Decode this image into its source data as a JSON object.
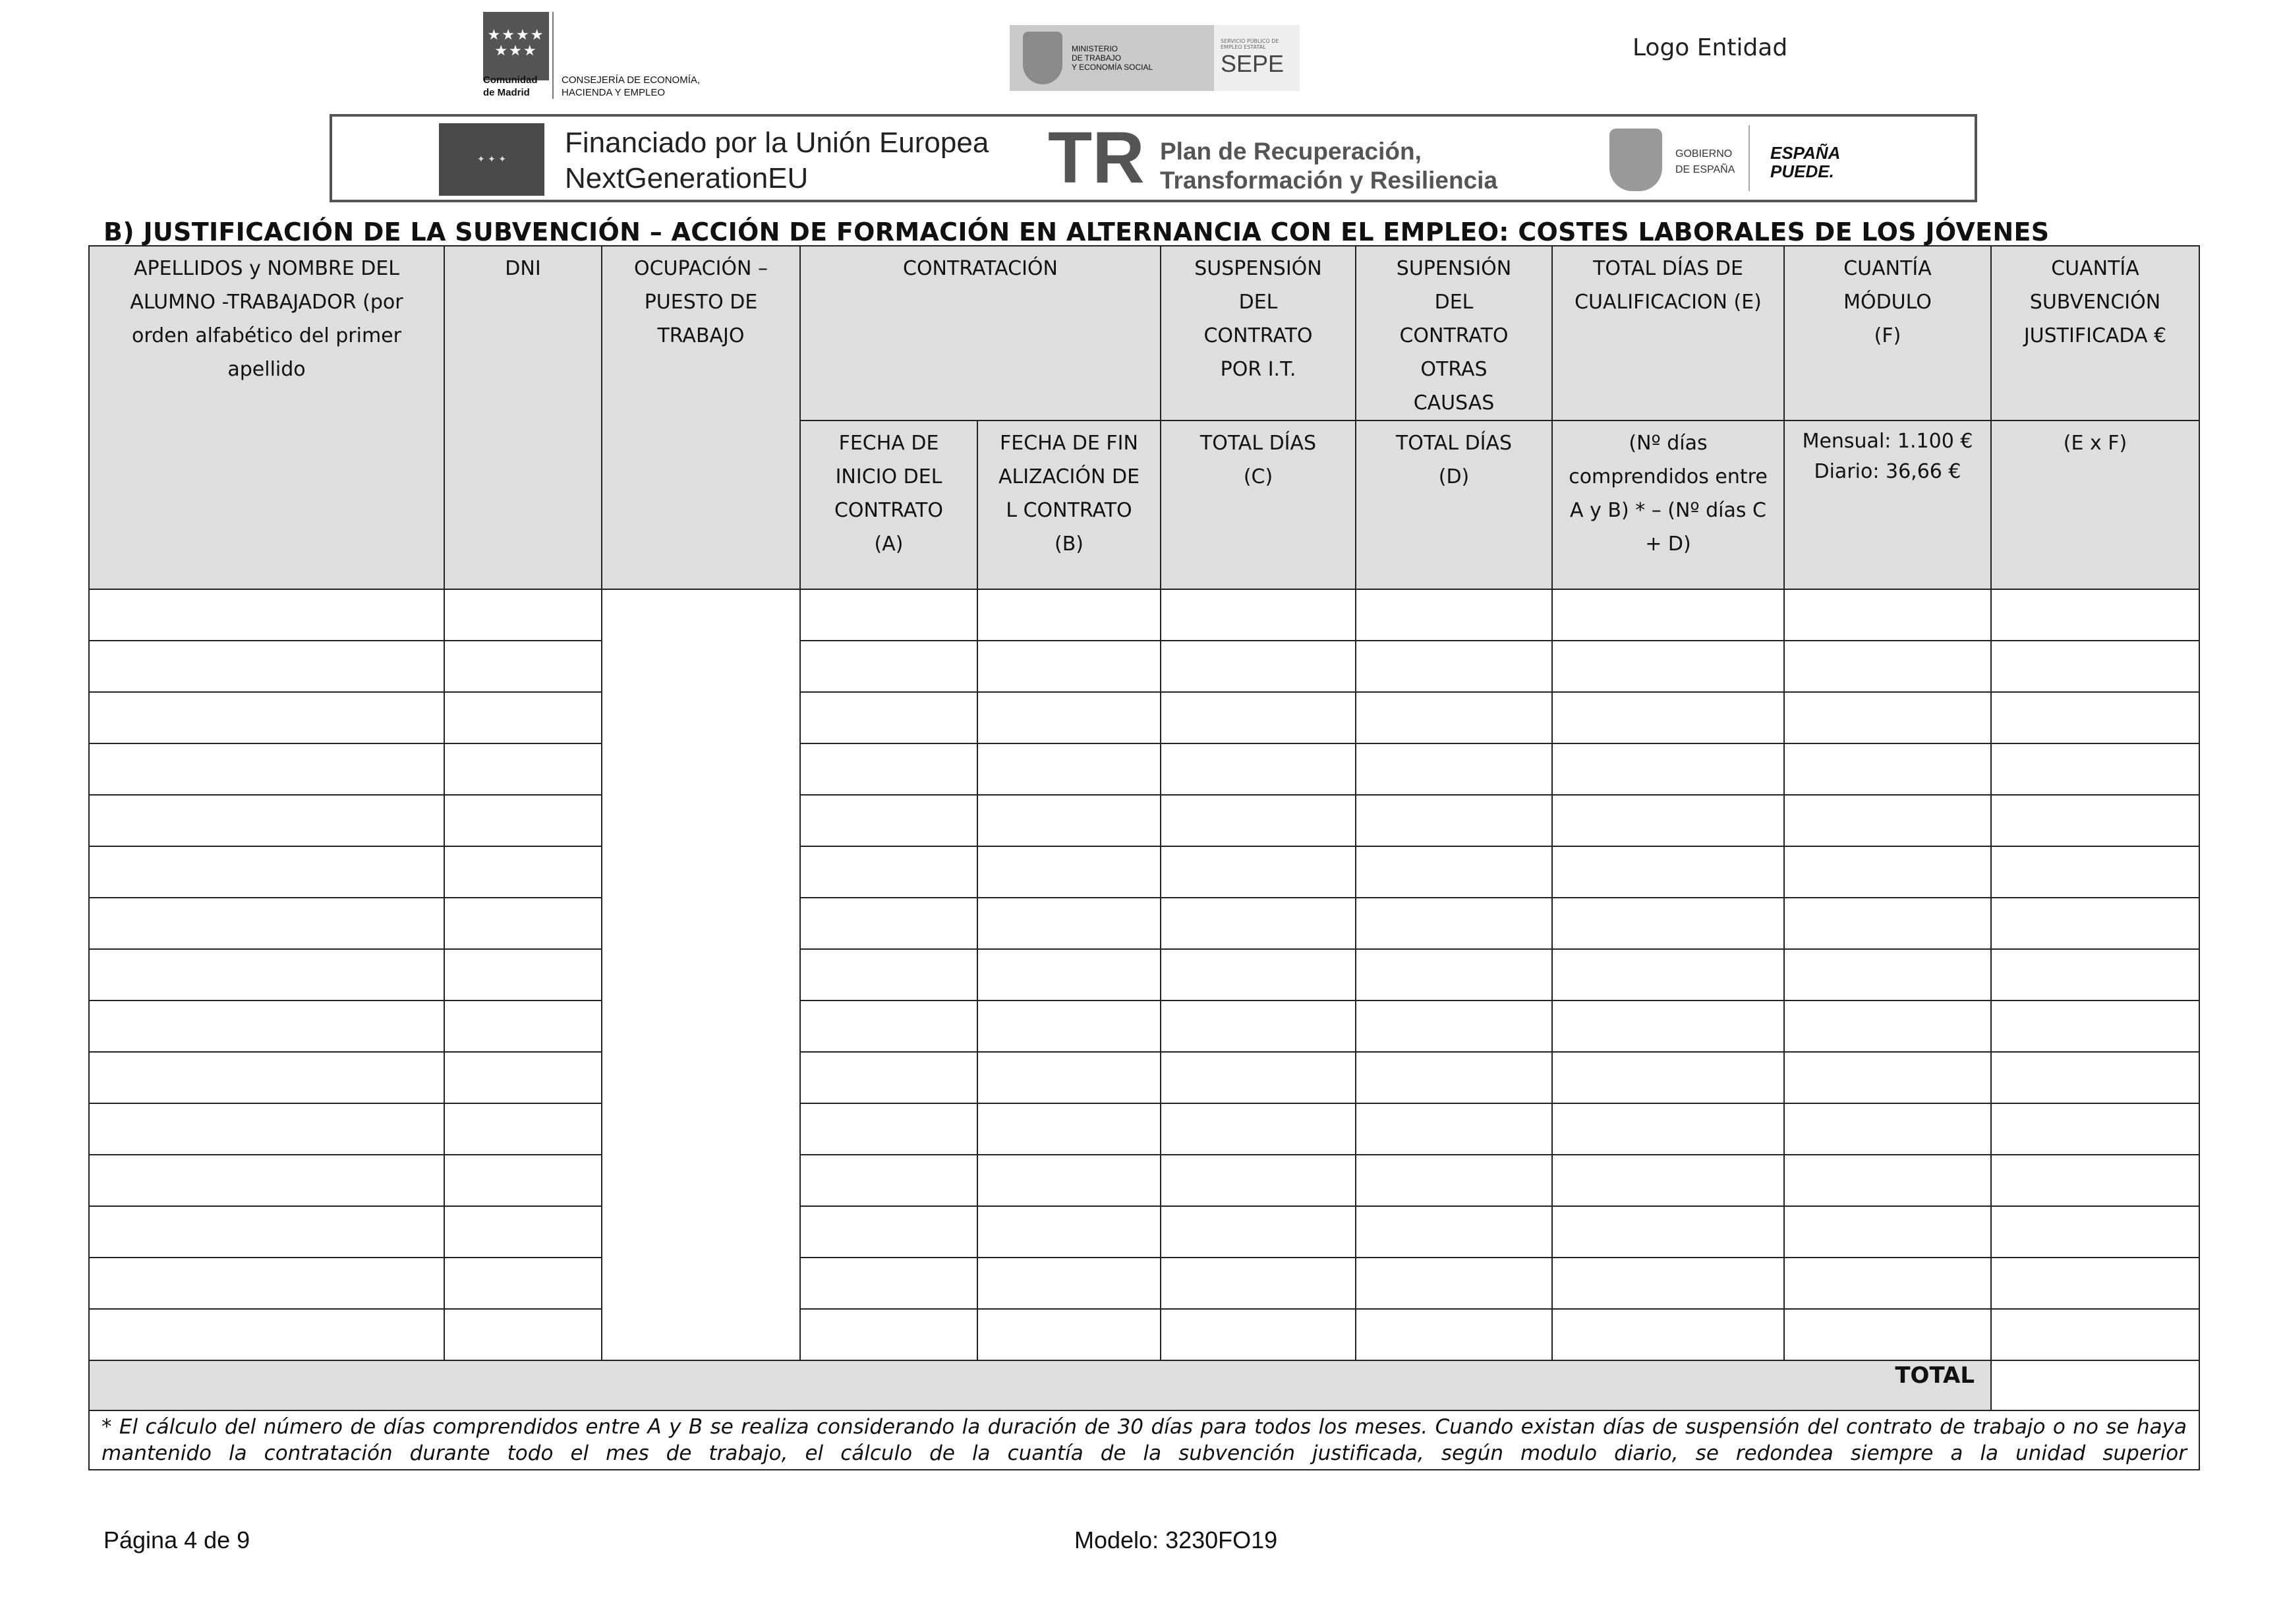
{
  "header": {
    "madrid_logo": {
      "flag_stars": "★★★★ ★★★",
      "name_line1": "Comunidad",
      "name_line2": "de Madrid",
      "dept_line1": "CONSEJERÍA DE ECONOMÍA,",
      "dept_line2": "HACIENDA Y EMPLEO"
    },
    "ministry_logo": {
      "line1": "MINISTERIO",
      "line2": "DE TRABAJO",
      "line3": "Y ECONOMÍA SOCIAL",
      "sepe_small": "SERVICIO PÚBLICO DE EMPLEO ESTATAL",
      "sepe": "SEPE"
    },
    "logo_entidad": "Logo Entidad"
  },
  "banner": {
    "eu_line1": "Financiado por la Unión Europea",
    "eu_line2": "NextGenerationEU",
    "tr_logo": "TR",
    "plan_line1": "Plan de Recuperación,",
    "plan_line2": "Transformación y Resiliencia",
    "gobierno_line1": "GOBIERNO",
    "gobierno_line2": "DE ESPAÑA",
    "espana_line1": "ESPAÑA",
    "espana_line2": "PUEDE."
  },
  "section_title": "B) JUSTIFICACIÓN DE LA SUBVENCIÓN – ACCIÓN DE FORMACIÓN EN ALTERNANCIA CON EL EMPLEO: COSTES LABORALES DE LOS JÓVENES",
  "table": {
    "headers": {
      "alumno": "APELLIDOS y NOMBRE DEL ALUMNO -TRABAJADOR (por orden alfabético del primer apellido",
      "dni": "DNI",
      "ocupacion": "OCUPACIÓN – PUESTO DE TRABAJO",
      "contratacion": "CONTRATACIÓN",
      "suspension_it": "SUSPENSIÓN DEL CONTRATO POR I.T.",
      "suspension_otras": "SUPENSIÓN DEL CONTRATO OTRAS CAUSAS",
      "total_dias_cualificacion": "TOTAL DÍAS DE CUALIFICACION (E)",
      "cuantia_modulo": "CUANTÍA MÓDULO (F)",
      "cuantia_subvencion": "CUANTÍA SUBVENCIÓN JUSTIFICADA €",
      "fecha_inicio": "FECHA DE INICIO DEL CONTRATO (A)",
      "fecha_fin": "FECHA DE FINALIZACIÓN DEL CONTRATO (B)",
      "total_dias_c": "TOTAL DÍAS (C)",
      "total_dias_d": "TOTAL DÍAS (D)",
      "formula_e": "(Nº días comprendidos entre A y B) * – (Nº días C + D)",
      "modulo_mensual": "Mensual: 1.100 €",
      "modulo_diario": "Diario: 36,66 €",
      "formula_exf": "(E x F)"
    },
    "total_label": "TOTAL",
    "footnote": "* El cálculo del número de días comprendidos entre A y B se realiza considerando la duración de 30 días para todos los meses. Cuando existan días de suspensión del contrato de trabajo o no se haya mantenido la contratación durante todo el mes de trabajo, el cálculo de la cuantía de la subvención justificada, según modulo diario, se redondea siempre a la unidad superior"
  },
  "footer": {
    "page": "Página 4 de 9",
    "model": "Modelo: 3230FO19"
  }
}
